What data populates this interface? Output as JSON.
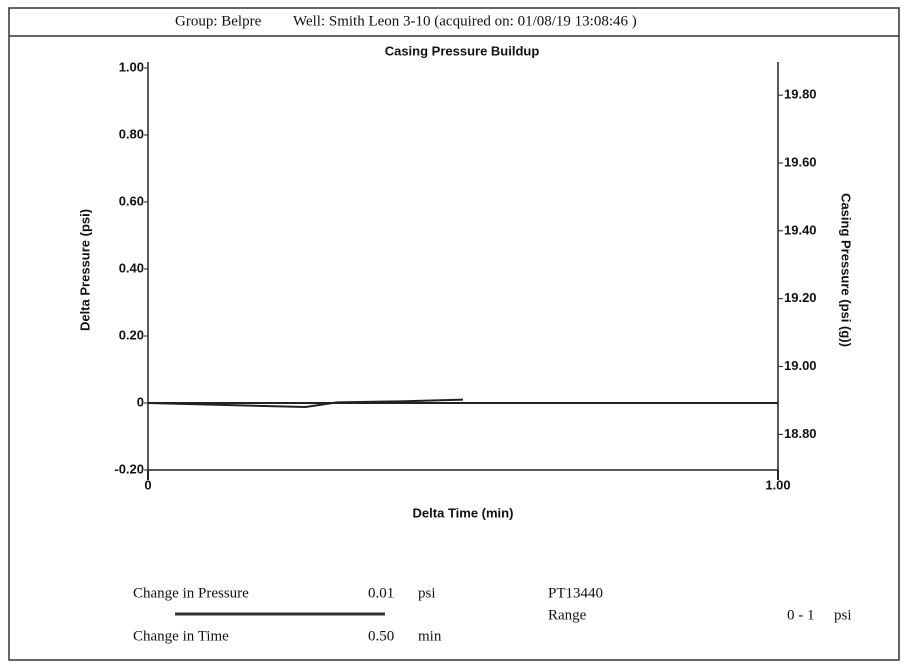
{
  "header": {
    "group": "Group: Belpre",
    "well": "Well: Smith Leon 3-10 (acquired on: 01/08/19 13:08:46 )"
  },
  "chart_data": {
    "type": "line",
    "title": "Casing Pressure Buildup",
    "x_label": "Delta Time (min)",
    "y_label": "Delta Pressure (psi)",
    "y2_label": "Casing Pressure (psi (g))",
    "xlim": [
      0,
      1
    ],
    "xticks": [
      0,
      {
        "value": 1,
        "label": "1.00"
      }
    ],
    "ylim": [
      -0.2,
      1.0
    ],
    "yticks": [
      {
        "value": -0.2,
        "label": "-0.20"
      },
      0,
      {
        "value": 0.2,
        "label": "0.20"
      },
      {
        "value": 0.4,
        "label": "0.40"
      },
      {
        "value": 0.6,
        "label": "0.60"
      },
      {
        "value": 0.8,
        "label": "0.80"
      },
      {
        "value": 1.0,
        "label": "1.00"
      }
    ],
    "y2lim": [
      18.695,
      19.88
    ],
    "y2ticks": [
      {
        "value": 18.8,
        "label": "18.80"
      },
      {
        "value": 19.0,
        "label": "19.00"
      },
      {
        "value": 19.2,
        "label": "19.20"
      },
      {
        "value": 19.4,
        "label": "19.40"
      },
      {
        "value": 19.6,
        "label": "19.60"
      },
      {
        "value": 19.8,
        "label": "19.80"
      }
    ],
    "x": [
      0,
      0.25,
      0.3,
      0.4,
      0.5
    ],
    "series": [
      {
        "color": "#222222",
        "values": [
          0,
          -0.012,
          0.002,
          0.005,
          0.01
        ]
      }
    ]
  },
  "footer": {
    "pressure_label": "Change in Pressure",
    "pressure_value": "0.01",
    "pressure_unit": "psi",
    "time_label": "Change in Time",
    "time_value": "0.50",
    "time_unit": "min",
    "sensor": "PT13440",
    "range_label": "Range",
    "range_value": "0 - 1",
    "range_unit": "psi"
  }
}
